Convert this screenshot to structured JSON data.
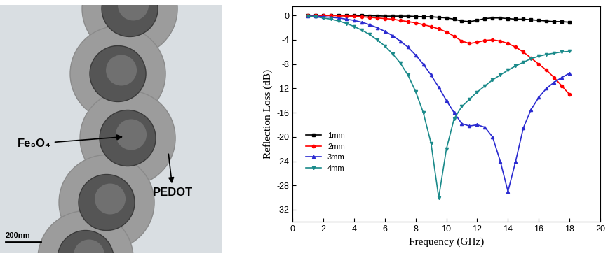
{
  "micrograph": {
    "labels": [
      "Fe₃O₄",
      "PEDOT"
    ],
    "scale_bar": "200nm"
  },
  "chart_data": {
    "type": "line",
    "x_label": "Frequency (GHz)",
    "y_label": "Reflection Loss (dB)",
    "x": [
      1,
      1.5,
      2,
      2.5,
      3,
      3.5,
      4,
      4.5,
      5,
      5.5,
      6,
      6.5,
      7,
      7.5,
      8,
      8.5,
      9,
      9.5,
      10,
      10.5,
      11,
      11.5,
      12,
      12.5,
      13,
      13.5,
      14,
      14.5,
      15,
      15.5,
      16,
      16.5,
      17,
      17.5,
      18
    ],
    "xlim": [
      0,
      20
    ],
    "xticks": [
      0,
      2,
      4,
      6,
      8,
      10,
      12,
      14,
      16,
      18,
      20
    ],
    "ylim": [
      -34,
      1.5
    ],
    "yticks": [
      -32,
      -28,
      -24,
      -20,
      -16,
      -12,
      -8,
      -4,
      0
    ],
    "legend": "lower left",
    "series": [
      {
        "name": "1mm",
        "color": "#000000",
        "marker": "s",
        "values": [
          0,
          0,
          0,
          0,
          0,
          0,
          0,
          0,
          -0.05,
          -0.05,
          -0.1,
          -0.1,
          -0.1,
          -0.1,
          -0.15,
          -0.2,
          -0.2,
          -0.3,
          -0.4,
          -0.6,
          -0.9,
          -1.0,
          -0.8,
          -0.5,
          -0.4,
          -0.4,
          -0.5,
          -0.6,
          -0.6,
          -0.7,
          -0.8,
          -0.9,
          -1.0,
          -1.0,
          -1.1
        ]
      },
      {
        "name": "2mm",
        "color": "#ff0000",
        "marker": "o",
        "values": [
          0,
          0,
          0,
          0,
          -0.05,
          -0.1,
          -0.1,
          -0.2,
          -0.3,
          -0.4,
          -0.5,
          -0.6,
          -0.8,
          -1.0,
          -1.2,
          -1.5,
          -1.8,
          -2.2,
          -2.7,
          -3.4,
          -4.2,
          -4.6,
          -4.4,
          -4.1,
          -4.0,
          -4.2,
          -4.6,
          -5.2,
          -6.0,
          -7.0,
          -8.0,
          -9.0,
          -10.2,
          -11.6,
          -13.0
        ]
      },
      {
        "name": "3mm",
        "color": "#2a2ad0",
        "marker": "^",
        "values": [
          -0.1,
          -0.1,
          -0.2,
          -0.3,
          -0.4,
          -0.6,
          -0.8,
          -1.1,
          -1.5,
          -2.0,
          -2.6,
          -3.3,
          -4.2,
          -5.2,
          -6.5,
          -8.0,
          -9.8,
          -11.8,
          -14.0,
          -16.0,
          -17.8,
          -18.2,
          -18.0,
          -18.4,
          -20.0,
          -24.0,
          -29.0,
          -24.0,
          -18.5,
          -15.5,
          -13.5,
          -12.0,
          -11.0,
          -10.2,
          -9.5
        ]
      },
      {
        "name": "4mm",
        "color": "#1a8a8a",
        "marker": "v",
        "values": [
          -0.1,
          -0.2,
          -0.4,
          -0.6,
          -0.9,
          -1.3,
          -1.8,
          -2.4,
          -3.1,
          -4.0,
          -5.0,
          -6.3,
          -7.8,
          -9.8,
          -12.5,
          -16.0,
          -21.0,
          -30.0,
          -22.0,
          -17.0,
          -15.0,
          -13.8,
          -12.6,
          -11.6,
          -10.6,
          -9.8,
          -9.0,
          -8.3,
          -7.7,
          -7.1,
          -6.7,
          -6.4,
          -6.2,
          -6.0,
          -5.9
        ]
      }
    ]
  }
}
